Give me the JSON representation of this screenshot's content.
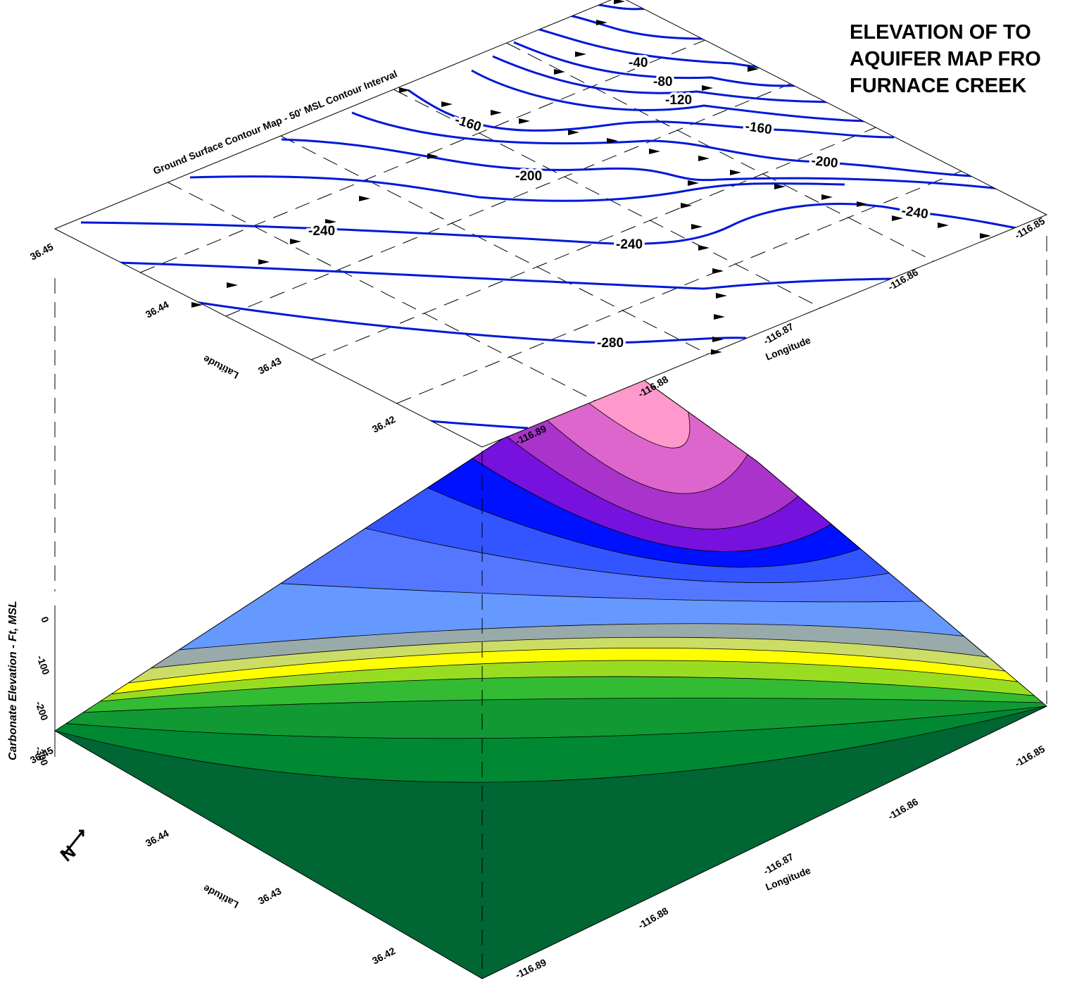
{
  "title": {
    "lines": [
      "ELEVATION OF TO",
      "AQUIFER MAP FRO",
      "FURNACE CREEK"
    ]
  },
  "top_map": {
    "title": "Ground Surface Contour Map - 50' MSL Contour Interval",
    "latitude_label": "Latitude",
    "longitude_label": "Longitude",
    "latitude_ticks": [
      36.45,
      36.44,
      36.43,
      36.42
    ],
    "longitude_ticks": [
      -116.89,
      -116.88,
      -116.87,
      -116.86,
      -116.85
    ],
    "contour_labels": [
      -40,
      -80,
      -120,
      -160,
      -160,
      -200,
      -200,
      -240,
      -240,
      -240,
      -280
    ]
  },
  "surface": {
    "z_axis_label": "Carbonate Elevation - Ft, MSL",
    "z_ticks": [
      0,
      -100,
      -200,
      -300
    ],
    "latitude_label": "Latitude",
    "longitude_label": "Longitude",
    "latitude_ticks": [
      36.45,
      36.44,
      36.43,
      36.42
    ],
    "longitude_ticks": [
      -116.89,
      -116.88,
      -116.87,
      -116.86,
      -116.85
    ]
  },
  "north_arrow": "N"
}
